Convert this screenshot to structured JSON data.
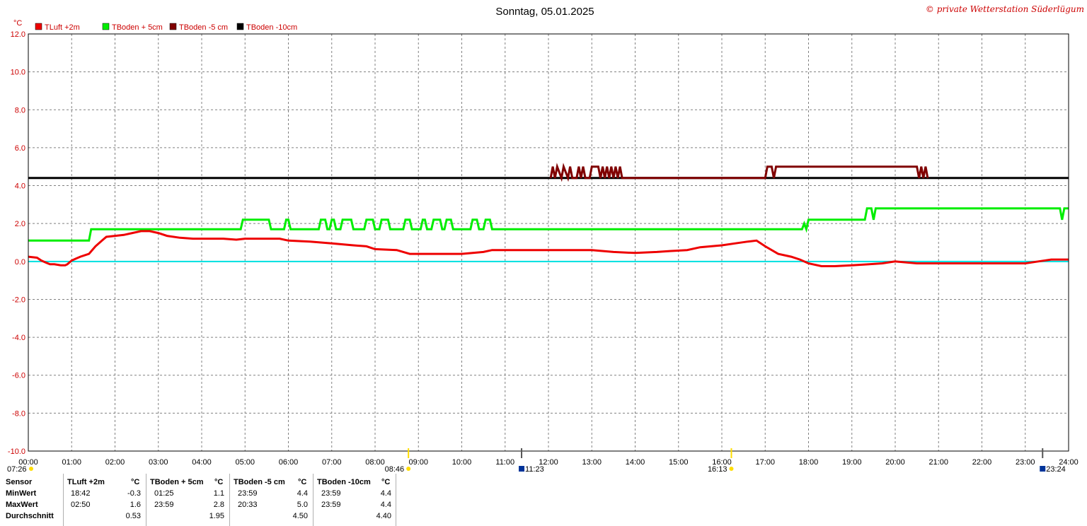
{
  "header": {
    "title": "Sonntag, 05.01.2025",
    "copyright": "© private Wetterstation Süderlügum"
  },
  "colors": {
    "tluft": "#ee0000",
    "tboden5": "#00ee00",
    "tbodenm5": "#800000",
    "tbodenm10": "#000000",
    "zero_line": "#00e0e0",
    "grid": "#808080",
    "axis_text": "#cc0000",
    "sun_marker": "#ffdd00",
    "moon_marker": "#003399"
  },
  "chart_data": {
    "type": "line",
    "ylabel": "°C",
    "ylim": [
      -10,
      12
    ],
    "yticks": [
      "12.0",
      "10.0",
      "8.0",
      "6.0",
      "4.0",
      "2.0",
      "0.0",
      "-2.0",
      "-4.0",
      "-6.0",
      "-8.0",
      "-10.0"
    ],
    "xlim": [
      0,
      24
    ],
    "xticks": [
      "00:00",
      "01:00",
      "02:00",
      "03:00",
      "04:00",
      "05:00",
      "06:00",
      "07:00",
      "08:00",
      "09:00",
      "10:00",
      "11:00",
      "12:00",
      "13:00",
      "14:00",
      "15:00",
      "16:00",
      "17:00",
      "18:00",
      "19:00",
      "20:00",
      "21:00",
      "22:00",
      "23:00",
      "24:00"
    ],
    "grid": true,
    "legend_position": "top-left",
    "events": [
      {
        "label": "07:26",
        "time": 0.0,
        "kind": "sun"
      },
      {
        "label": "08:46",
        "time": 8.77,
        "kind": "sun"
      },
      {
        "label": "11:23",
        "time": 11.38,
        "kind": "moon"
      },
      {
        "label": "16:13",
        "time": 16.22,
        "kind": "sun"
      },
      {
        "label": "23:24",
        "time": 23.4,
        "kind": "moon"
      }
    ],
    "series": [
      {
        "name": "TLuft +2m",
        "color": "#ee0000",
        "points": [
          [
            0,
            0.25
          ],
          [
            0.2,
            0.2
          ],
          [
            0.3,
            0.05
          ],
          [
            0.4,
            -0.05
          ],
          [
            0.5,
            -0.15
          ],
          [
            0.6,
            -0.15
          ],
          [
            0.75,
            -0.2
          ],
          [
            0.85,
            -0.2
          ],
          [
            0.9,
            -0.15
          ],
          [
            1.0,
            0.05
          ],
          [
            1.1,
            0.15
          ],
          [
            1.2,
            0.25
          ],
          [
            1.4,
            0.4
          ],
          [
            1.55,
            0.8
          ],
          [
            1.7,
            1.1
          ],
          [
            1.8,
            1.3
          ],
          [
            2.0,
            1.35
          ],
          [
            2.2,
            1.4
          ],
          [
            2.4,
            1.5
          ],
          [
            2.6,
            1.6
          ],
          [
            2.8,
            1.6
          ],
          [
            3.0,
            1.5
          ],
          [
            3.2,
            1.35
          ],
          [
            3.5,
            1.25
          ],
          [
            3.8,
            1.2
          ],
          [
            4.5,
            1.2
          ],
          [
            4.8,
            1.15
          ],
          [
            5.0,
            1.2
          ],
          [
            5.8,
            1.2
          ],
          [
            6.0,
            1.1
          ],
          [
            6.5,
            1.05
          ],
          [
            7.0,
            0.95
          ],
          [
            7.5,
            0.85
          ],
          [
            7.8,
            0.8
          ],
          [
            8.0,
            0.65
          ],
          [
            8.5,
            0.6
          ],
          [
            8.8,
            0.4
          ],
          [
            10.0,
            0.4
          ],
          [
            10.5,
            0.5
          ],
          [
            10.7,
            0.6
          ],
          [
            12.0,
            0.6
          ],
          [
            13.0,
            0.6
          ],
          [
            13.5,
            0.5
          ],
          [
            14.0,
            0.45
          ],
          [
            14.5,
            0.5
          ],
          [
            14.8,
            0.55
          ],
          [
            15.2,
            0.6
          ],
          [
            15.5,
            0.75
          ],
          [
            16.0,
            0.85
          ],
          [
            16.3,
            0.95
          ],
          [
            16.6,
            1.05
          ],
          [
            16.8,
            1.1
          ],
          [
            17.0,
            0.8
          ],
          [
            17.3,
            0.4
          ],
          [
            17.6,
            0.25
          ],
          [
            17.8,
            0.1
          ],
          [
            18.0,
            -0.1
          ],
          [
            18.3,
            -0.25
          ],
          [
            18.6,
            -0.25
          ],
          [
            19.0,
            -0.2
          ],
          [
            19.4,
            -0.15
          ],
          [
            19.7,
            -0.1
          ],
          [
            20.0,
            0.0
          ],
          [
            20.5,
            -0.1
          ],
          [
            21.0,
            -0.1
          ],
          [
            22.0,
            -0.1
          ],
          [
            23.0,
            -0.1
          ],
          [
            23.3,
            0.0
          ],
          [
            23.6,
            0.1
          ],
          [
            24.0,
            0.1
          ]
        ]
      },
      {
        "name": "TBoden + 5cm",
        "color": "#00ee00",
        "points": [
          [
            0,
            1.1
          ],
          [
            1.4,
            1.1
          ],
          [
            1.45,
            1.7
          ],
          [
            2.0,
            1.7
          ],
          [
            2.2,
            1.7
          ],
          [
            4.9,
            1.7
          ],
          [
            4.95,
            2.2
          ],
          [
            5.55,
            2.2
          ],
          [
            5.6,
            1.7
          ],
          [
            5.9,
            1.7
          ],
          [
            5.95,
            2.2
          ],
          [
            6.0,
            2.2
          ],
          [
            6.05,
            1.7
          ],
          [
            6.7,
            1.7
          ],
          [
            6.75,
            2.2
          ],
          [
            6.85,
            2.2
          ],
          [
            6.9,
            1.7
          ],
          [
            6.95,
            1.7
          ],
          [
            7.0,
            2.2
          ],
          [
            7.05,
            2.2
          ],
          [
            7.1,
            1.7
          ],
          [
            7.2,
            1.7
          ],
          [
            7.25,
            2.2
          ],
          [
            7.45,
            2.2
          ],
          [
            7.5,
            1.7
          ],
          [
            7.75,
            1.7
          ],
          [
            7.8,
            2.2
          ],
          [
            7.95,
            2.2
          ],
          [
            8.0,
            1.7
          ],
          [
            8.1,
            1.7
          ],
          [
            8.15,
            2.2
          ],
          [
            8.3,
            2.2
          ],
          [
            8.35,
            1.7
          ],
          [
            8.65,
            1.7
          ],
          [
            8.7,
            2.2
          ],
          [
            8.8,
            2.2
          ],
          [
            8.85,
            1.7
          ],
          [
            9.05,
            1.7
          ],
          [
            9.1,
            2.2
          ],
          [
            9.15,
            2.2
          ],
          [
            9.2,
            1.7
          ],
          [
            9.3,
            1.7
          ],
          [
            9.35,
            2.2
          ],
          [
            9.5,
            2.2
          ],
          [
            9.55,
            1.7
          ],
          [
            9.6,
            1.7
          ],
          [
            9.65,
            2.2
          ],
          [
            9.75,
            2.2
          ],
          [
            9.8,
            1.7
          ],
          [
            10.2,
            1.7
          ],
          [
            10.25,
            2.2
          ],
          [
            10.35,
            2.2
          ],
          [
            10.4,
            1.7
          ],
          [
            10.5,
            1.7
          ],
          [
            10.55,
            2.2
          ],
          [
            10.65,
            2.2
          ],
          [
            10.7,
            1.7
          ],
          [
            17.85,
            1.7
          ],
          [
            17.9,
            2.0
          ],
          [
            17.95,
            1.7
          ],
          [
            18.0,
            2.2
          ],
          [
            19.3,
            2.2
          ],
          [
            19.35,
            2.8
          ],
          [
            19.45,
            2.8
          ],
          [
            19.5,
            2.2
          ],
          [
            19.55,
            2.8
          ],
          [
            23.8,
            2.8
          ],
          [
            23.85,
            2.2
          ],
          [
            23.9,
            2.8
          ],
          [
            24.0,
            2.8
          ]
        ]
      },
      {
        "name": "TBoden -5 cm",
        "color": "#800000",
        "points": [
          [
            12.05,
            4.4
          ],
          [
            12.1,
            5.0
          ],
          [
            12.15,
            4.4
          ],
          [
            12.2,
            5.0
          ],
          [
            12.3,
            4.4
          ],
          [
            12.35,
            5.0
          ],
          [
            12.45,
            4.4
          ],
          [
            12.5,
            5.0
          ],
          [
            12.55,
            4.4
          ],
          [
            12.65,
            4.4
          ],
          [
            12.7,
            5.0
          ],
          [
            12.75,
            4.4
          ],
          [
            12.8,
            5.0
          ],
          [
            12.85,
            4.4
          ],
          [
            12.95,
            4.4
          ],
          [
            13.0,
            5.0
          ],
          [
            13.15,
            5.0
          ],
          [
            13.2,
            4.4
          ],
          [
            13.25,
            5.0
          ],
          [
            13.3,
            4.4
          ],
          [
            13.35,
            5.0
          ],
          [
            13.4,
            4.4
          ],
          [
            13.45,
            5.0
          ],
          [
            13.5,
            4.4
          ],
          [
            13.55,
            5.0
          ],
          [
            13.6,
            4.4
          ],
          [
            13.65,
            5.0
          ],
          [
            13.7,
            4.4
          ],
          [
            17.0,
            4.4
          ],
          [
            17.05,
            5.0
          ],
          [
            17.15,
            5.0
          ],
          [
            17.2,
            4.4
          ],
          [
            17.25,
            5.0
          ],
          [
            20.5,
            5.0
          ],
          [
            20.55,
            4.4
          ],
          [
            20.6,
            5.0
          ],
          [
            20.65,
            4.4
          ],
          [
            20.7,
            5.0
          ],
          [
            20.75,
            4.4
          ]
        ]
      },
      {
        "name": "TBoden -10cm",
        "color": "#000000",
        "points": [
          [
            0,
            4.4
          ],
          [
            24,
            4.4
          ]
        ]
      }
    ]
  },
  "table": {
    "headers": {
      "sensor": "Sensor",
      "tluft": "TLuft +2m",
      "tluft_unit": "°C",
      "tb5": "TBoden + 5cm",
      "tb5_unit": "°C",
      "tbm5": "TBoden -5 cm",
      "tbm5_unit": "°C",
      "tbm10": "TBoden -10cm",
      "tbm10_unit": "°C"
    },
    "rows": [
      {
        "label": "MinWert",
        "tluft_time": "18:42",
        "tluft_val": "-0.3",
        "tb5_time": "01:25",
        "tb5_val": "1.1",
        "tbm5_time": "23:59",
        "tbm5_val": "4.4",
        "tbm10_time": "23:59",
        "tbm10_val": "4.4"
      },
      {
        "label": "MaxWert",
        "tluft_time": "02:50",
        "tluft_val": "1.6",
        "tb5_time": "23:59",
        "tb5_val": "2.8",
        "tbm5_time": "20:33",
        "tbm5_val": "5.0",
        "tbm10_time": "23:59",
        "tbm10_val": "4.4"
      },
      {
        "label": "Durchschnitt",
        "tluft_time": "",
        "tluft_val": "0.53",
        "tb5_time": "",
        "tb5_val": "1.95",
        "tbm5_time": "",
        "tbm5_val": "4.50",
        "tbm10_time": "",
        "tbm10_val": "4.40"
      }
    ]
  }
}
